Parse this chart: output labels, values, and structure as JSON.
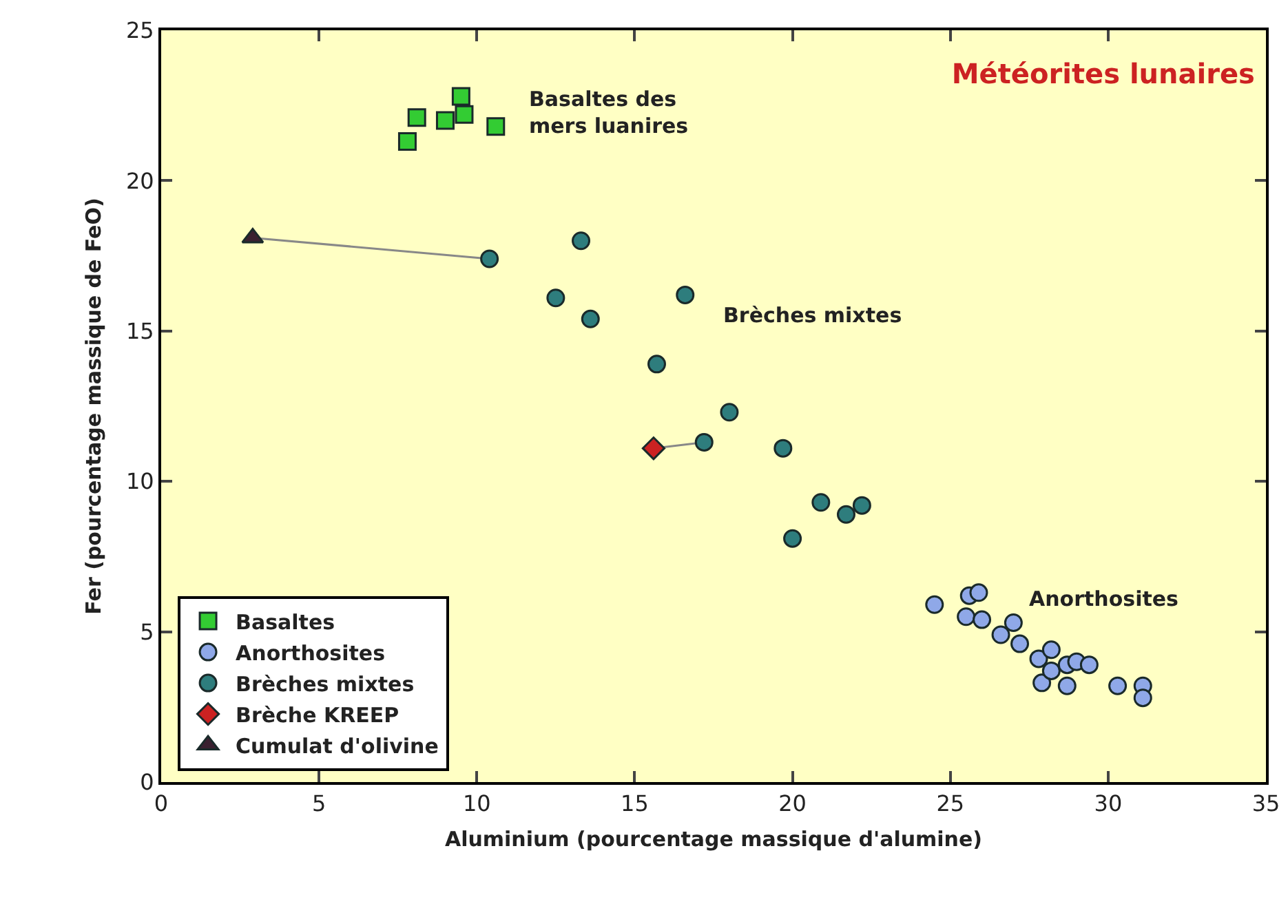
{
  "chart_data": {
    "type": "scatter",
    "title": "Météorites lunaires",
    "xlabel": "Aluminium (pourcentage massique d'alumine)",
    "ylabel": "Fer (pourcentage massique de FeO)",
    "xlim": [
      0,
      35
    ],
    "ylim": [
      0,
      25
    ],
    "xticks": [
      0,
      5,
      10,
      15,
      20,
      25,
      30,
      35
    ],
    "yticks": [
      0,
      5,
      10,
      15,
      20,
      25
    ],
    "grid": false,
    "legend": "bottom left",
    "annotations": [
      "Basaltes des\nmers luanires",
      "Brèches mixtes",
      "Anorthosites"
    ],
    "series": [
      {
        "type": "line",
        "color": "#888888",
        "marker": "none",
        "x": [
          2.9,
          10.4
        ],
        "values": [
          18.1,
          17.4
        ]
      },
      {
        "type": "line",
        "color": "#888888",
        "marker": "none",
        "x": [
          15.6,
          17.2
        ],
        "values": [
          11.1,
          11.3
        ]
      },
      {
        "name": "Basaltes",
        "color": "#33cc33",
        "marker": "square",
        "x": [
          7.8,
          8.1,
          9.0,
          9.5,
          9.6,
          10.6
        ],
        "values": [
          21.3,
          22.1,
          22.0,
          22.8,
          22.2,
          21.8
        ]
      },
      {
        "name": "Anorthosites",
        "color": "#8fa8e8",
        "marker": "circle",
        "x": [
          24.5,
          25.6,
          25.9,
          25.5,
          26.0,
          26.6,
          27.0,
          27.2,
          27.8,
          28.2,
          27.9,
          28.2,
          28.7,
          28.7,
          29.0,
          29.4,
          30.3,
          31.1,
          31.1
        ],
        "values": [
          5.9,
          6.2,
          6.3,
          5.5,
          5.4,
          4.9,
          5.3,
          4.6,
          4.1,
          4.4,
          3.3,
          3.7,
          3.2,
          3.9,
          4.0,
          3.9,
          3.2,
          3.2,
          2.8
        ]
      },
      {
        "name": "Brèches mixtes",
        "color": "#2e7d7d",
        "marker": "circle",
        "x": [
          10.4,
          13.3,
          12.5,
          13.6,
          16.6,
          15.7,
          18.0,
          17.2,
          19.7,
          20.9,
          21.7,
          22.2,
          20.0
        ],
        "values": [
          17.4,
          18.0,
          16.1,
          15.4,
          16.2,
          13.9,
          12.3,
          11.3,
          11.1,
          9.3,
          8.9,
          9.2,
          8.1
        ]
      },
      {
        "name": "Brèche KREEP",
        "color": "#cc2222",
        "marker": "diamond",
        "x": [
          15.6
        ],
        "values": [
          11.1
        ]
      },
      {
        "name": "Cumulat d'olivine",
        "color": "#3a2030",
        "marker": "triangle",
        "x": [
          2.9
        ],
        "values": [
          18.1
        ]
      }
    ]
  }
}
